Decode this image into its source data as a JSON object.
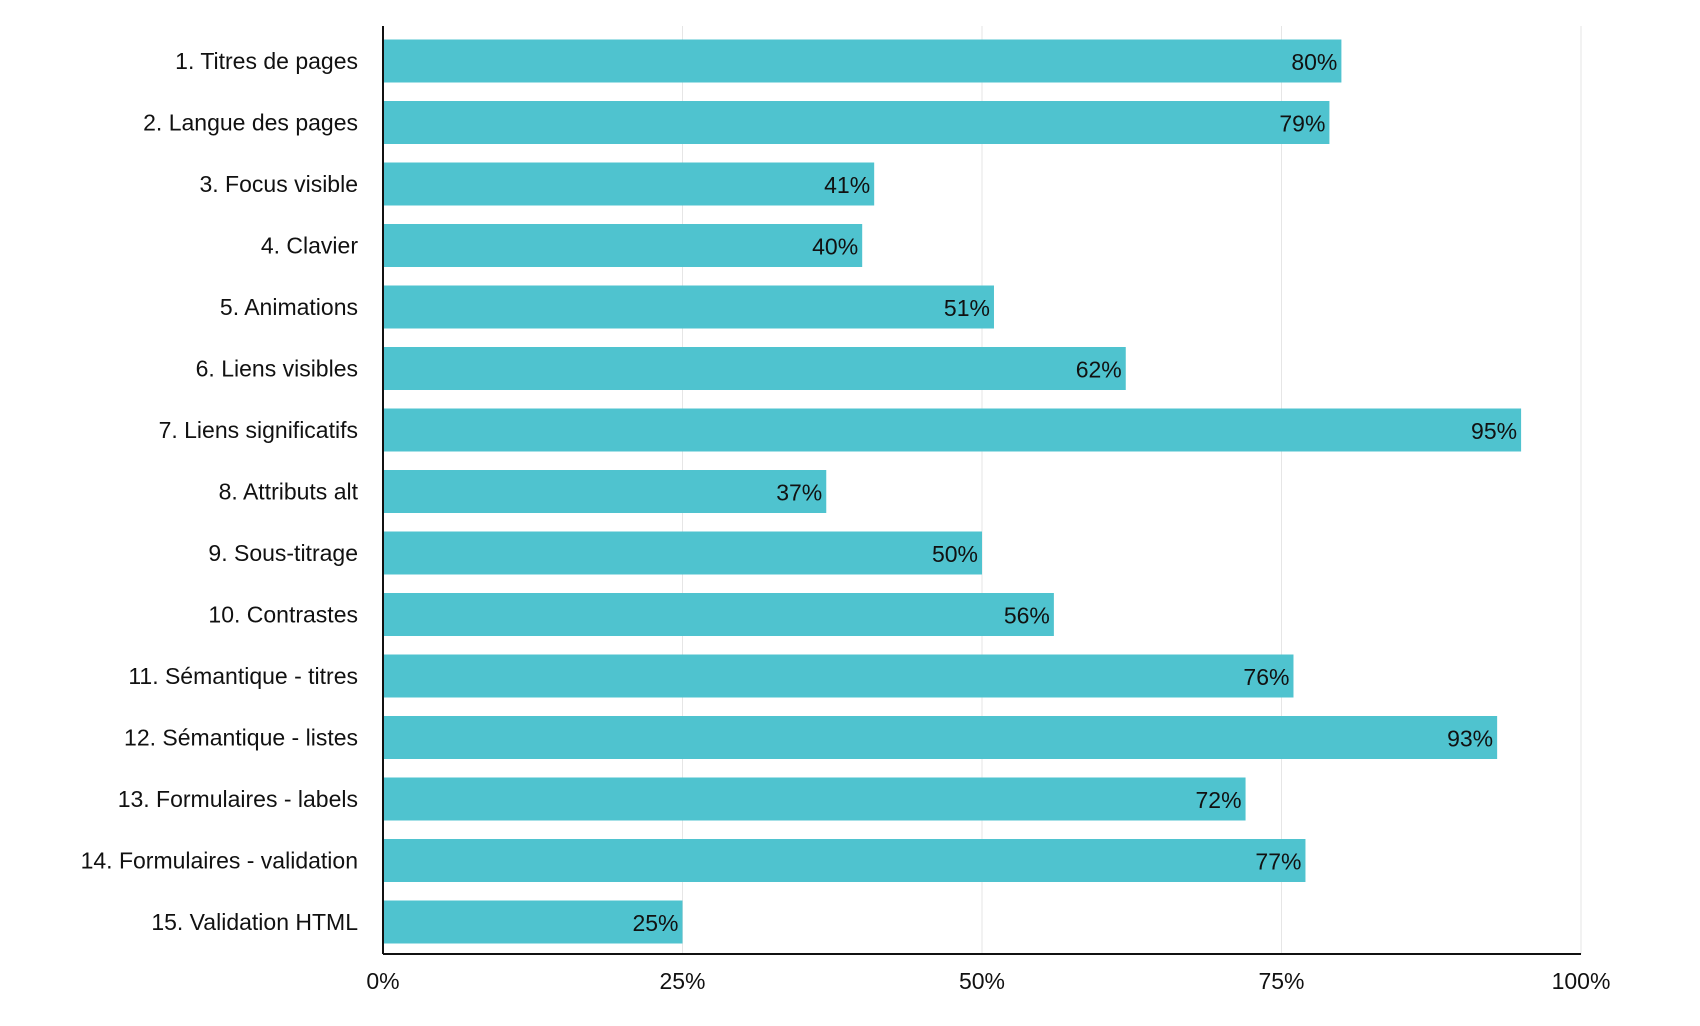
{
  "chart_data": {
    "type": "bar",
    "orientation": "horizontal",
    "categories": [
      "1. Titres de pages",
      "2. Langue des pages",
      "3. Focus visible",
      "4. Clavier",
      "5. Animations",
      "6. Liens visibles",
      "7. Liens significatifs",
      "8. Attributs alt",
      "9. Sous-titrage",
      "10. Contrastes",
      "11. Sémantique - titres",
      "12. Sémantique - listes",
      "13. Formulaires - labels",
      "14. Formulaires - validation",
      "15. Validation HTML"
    ],
    "values": [
      80,
      79,
      41,
      40,
      51,
      62,
      95,
      37,
      50,
      56,
      76,
      93,
      72,
      77,
      25
    ],
    "value_labels": [
      "80%",
      "79%",
      "41%",
      "40%",
      "51%",
      "62%",
      "95%",
      "37%",
      "50%",
      "56%",
      "76%",
      "93%",
      "72%",
      "77%",
      "25%"
    ],
    "xlim": [
      0,
      100
    ],
    "x_ticks": [
      0,
      25,
      50,
      75,
      100
    ],
    "x_tick_labels": [
      "0%",
      "25%",
      "50%",
      "75%",
      "100%"
    ],
    "grid": true,
    "legend": "none",
    "title": "",
    "xlabel": "",
    "ylabel": "",
    "colors": {
      "bar": "#4fc3cf",
      "axis": "#111111",
      "grid": "#e6e6e6"
    }
  }
}
